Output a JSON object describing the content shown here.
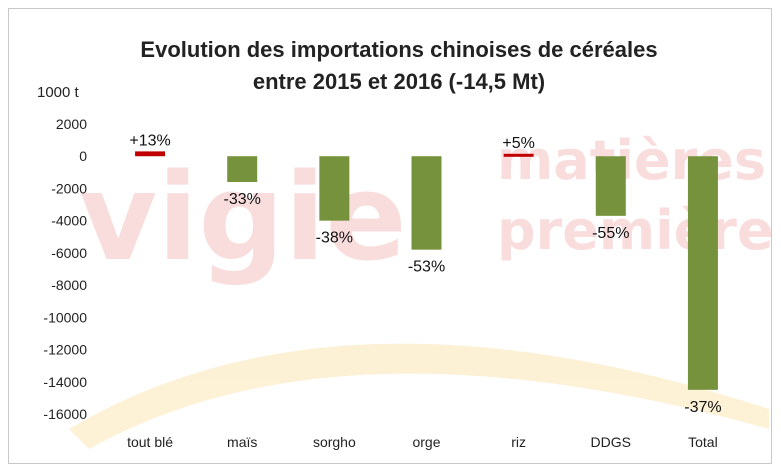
{
  "chart_data": {
    "type": "bar",
    "title_line1": "Evolution des importations chinoises de céréales",
    "title_line2": "entre 2015 et 2016 (-14,5 Mt)",
    "unit_label": "1000 t",
    "ylim": [
      -16000,
      2000
    ],
    "y_ticks": [
      "2000",
      "0",
      "-2000",
      "-4000",
      "-6000",
      "-8000",
      "-10000",
      "-12000",
      "-14000",
      "-16000"
    ],
    "y_tick_values": [
      2000,
      0,
      -2000,
      -4000,
      -6000,
      -8000,
      -10000,
      -12000,
      -14000,
      -16000
    ],
    "categories": [
      "tout blé",
      "maïs",
      "sorgho",
      "orge",
      "riz",
      "DDGS",
      "Total"
    ],
    "values": [
      300,
      -1600,
      -4000,
      -5800,
      150,
      -3700,
      -14500
    ],
    "labels": [
      "+13%",
      "-33%",
      "-38%",
      "-53%",
      "+5%",
      "-55%",
      "-37%"
    ],
    "grid": false,
    "colors": {
      "increase": "#c00000",
      "decrease": "#76923c"
    }
  },
  "watermark": {
    "word1": "vigie",
    "word2": "matières",
    "word3": "premières"
  }
}
